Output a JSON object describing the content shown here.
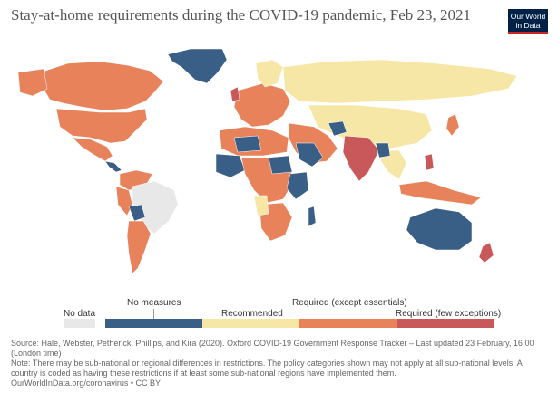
{
  "title": "Stay-at-home requirements during the COVID-19 pandemic, Feb 23, 2021",
  "logo": {
    "line1": "Our World",
    "line2": "in Data",
    "bg": "#002147",
    "accent": "#ce261e"
  },
  "colors": {
    "no_data": "#e8e8e8",
    "no_measures": "#3a5f86",
    "recommended": "#f6e7a6",
    "required_except": "#e8825b",
    "required_few": "#c8585a",
    "ocean": "#ffffff",
    "border": "#ffffff"
  },
  "legend": {
    "no_data": "No data",
    "no_measures": "No measures",
    "recommended": "Recommended",
    "required_except": "Required (except essentials)",
    "required_few": "Required (few exceptions)"
  },
  "source_text": "Source: Hale, Webster, Petherick, Phillips, and Kira (2020). Oxford COVID-19 Government Response Tracker – Last updated 23 February, 16:00 (London time)",
  "note_text": "Note: There may be sub-national or regional differences in restrictions. The policy categories shown may not apply at all sub-national levels. A country is coded as having these restrictions if at least some sub-national regions have implemented them.",
  "footer_text": "OurWorldInData.org/coronavirus • CC BY"
}
